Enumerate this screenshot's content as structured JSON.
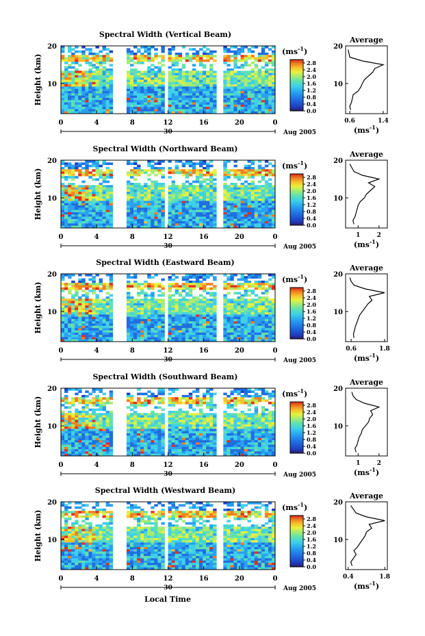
{
  "figure": {
    "xlabel": "Local Time",
    "date_label": "Aug 2005",
    "day_label": "30",
    "unit_label": "(ms",
    "unit_sup": "-1",
    "unit_close": ")",
    "average_title": "Average",
    "height_label": "Height (km)",
    "colormap": [
      "#2b1b6b",
      "#1f3fbf",
      "#1f6fe0",
      "#2aa0f0",
      "#3fd0e8",
      "#60e0b0",
      "#a8ec70",
      "#e8f040",
      "#f8c030",
      "#f08020",
      "#e03020",
      "#c01818"
    ],
    "nodata_color": "#ffffff"
  },
  "chart_data": [
    {
      "type": "heatmap",
      "title": "Spectral Width (Vertical Beam)",
      "ylabel": "Height (km)",
      "xlabel": "",
      "x_ticks": [
        "0",
        "4",
        "8",
        "12",
        "16",
        "20",
        "0"
      ],
      "xlim": [
        0,
        24
      ],
      "y_ticks": [
        "10",
        "20"
      ],
      "ylim": [
        2,
        20
      ],
      "colorbar": {
        "ticks": [
          "0.0",
          "0.4",
          "0.8",
          "1.2",
          "1.6",
          "2.0",
          "2.4",
          "2.8"
        ],
        "range": [
          0,
          3.0
        ]
      },
      "data_gaps_hours": [
        [
          5.8,
          7.4
        ],
        [
          11.6,
          12.0
        ],
        [
          17.6,
          18.2
        ]
      ],
      "average_profile": {
        "title": "Average",
        "xlabel": "(ms-1)",
        "x_ticks": [
          "0.6",
          "1.4"
        ],
        "xlim": [
          0.5,
          1.5
        ],
        "y_ticks": [
          "10",
          "20"
        ],
        "ylim": [
          2,
          20
        ],
        "height": [
          3,
          4,
          5,
          6,
          7,
          8,
          9,
          10,
          11,
          12,
          13,
          14,
          15,
          16,
          17,
          18,
          19
        ],
        "width": [
          0.62,
          0.6,
          0.64,
          0.66,
          0.68,
          0.8,
          0.86,
          0.9,
          0.95,
          1.05,
          1.15,
          1.2,
          1.4,
          0.9,
          0.6,
          0.58,
          0.56
        ]
      }
    },
    {
      "type": "heatmap",
      "title": "Spectral Width (Northward Beam)",
      "ylabel": "Height (km)",
      "xlabel": "",
      "x_ticks": [
        "0",
        "4",
        "8",
        "12",
        "16",
        "20",
        "0"
      ],
      "xlim": [
        0,
        24
      ],
      "y_ticks": [
        "10",
        "20"
      ],
      "ylim": [
        2,
        20
      ],
      "colorbar": {
        "ticks": [
          "0.0",
          "0.4",
          "0.8",
          "1.2",
          "1.6",
          "2.0",
          "2.4",
          "2.8"
        ],
        "range": [
          0,
          3.0
        ]
      },
      "data_gaps_hours": [
        [
          5.8,
          7.4
        ],
        [
          11.6,
          12.0
        ],
        [
          17.6,
          18.2
        ]
      ],
      "average_profile": {
        "title": "Average",
        "xlabel": "(ms-1)",
        "x_ticks": [
          "1",
          "2"
        ],
        "xlim": [
          0.4,
          2.4
        ],
        "y_ticks": [
          "10",
          "20"
        ],
        "ylim": [
          2,
          20
        ],
        "height": [
          3,
          4,
          5,
          6,
          7,
          8,
          9,
          10,
          11,
          12,
          13,
          14,
          15,
          16,
          17,
          18,
          19
        ],
        "width": [
          0.8,
          0.75,
          0.85,
          0.9,
          0.95,
          1.0,
          1.1,
          1.3,
          1.4,
          1.6,
          1.8,
          1.5,
          2.0,
          1.2,
          0.8,
          0.7,
          0.6
        ]
      }
    },
    {
      "type": "heatmap",
      "title": "Spectral Width (Eastward Beam)",
      "ylabel": "Height (km)",
      "xlabel": "",
      "x_ticks": [
        "0",
        "4",
        "8",
        "12",
        "16",
        "20",
        "0"
      ],
      "xlim": [
        0,
        24
      ],
      "y_ticks": [
        "10",
        "20"
      ],
      "ylim": [
        2,
        20
      ],
      "colorbar": {
        "ticks": [
          "0.0",
          "0.4",
          "0.8",
          "1.2",
          "1.6",
          "2.0",
          "2.4",
          "2.8"
        ],
        "range": [
          0,
          3.0
        ]
      },
      "data_gaps_hours": [
        [
          5.8,
          7.4
        ],
        [
          11.6,
          12.0
        ],
        [
          17.6,
          18.2
        ]
      ],
      "average_profile": {
        "title": "Average",
        "xlabel": "(ms-1)",
        "x_ticks": [
          "0.6",
          "1.8"
        ],
        "xlim": [
          0.4,
          1.9
        ],
        "y_ticks": [
          "10",
          "20"
        ],
        "ylim": [
          2,
          20
        ],
        "height": [
          3,
          4,
          5,
          6,
          7,
          8,
          9,
          10,
          11,
          12,
          13,
          14,
          15,
          16,
          17,
          18,
          19
        ],
        "width": [
          0.7,
          0.68,
          0.72,
          0.75,
          0.8,
          0.85,
          0.9,
          1.0,
          1.1,
          1.2,
          1.35,
          1.25,
          1.8,
          1.1,
          0.7,
          0.6,
          0.55
        ]
      }
    },
    {
      "type": "heatmap",
      "title": "Spectral Width (Southward Beam)",
      "ylabel": "Height (km)",
      "xlabel": "",
      "x_ticks": [
        "0",
        "4",
        "8",
        "12",
        "16",
        "20",
        "0"
      ],
      "xlim": [
        0,
        24
      ],
      "y_ticks": [
        "10",
        "20"
      ],
      "ylim": [
        2,
        20
      ],
      "colorbar": {
        "ticks": [
          "0.0",
          "0.4",
          "0.8",
          "1.2",
          "1.6",
          "2.0",
          "2.4",
          "2.8"
        ],
        "range": [
          0,
          3.0
        ]
      },
      "data_gaps_hours": [
        [
          5.8,
          7.4
        ],
        [
          11.6,
          12.0
        ],
        [
          17.6,
          18.2
        ]
      ],
      "average_profile": {
        "title": "Average",
        "xlabel": "(ms-1)",
        "x_ticks": [
          "1",
          "2"
        ],
        "xlim": [
          0.4,
          2.4
        ],
        "y_ticks": [
          "10",
          "20"
        ],
        "ylim": [
          2,
          20
        ],
        "height": [
          3,
          4,
          5,
          6,
          7,
          8,
          9,
          10,
          11,
          12,
          13,
          14,
          15,
          16,
          17,
          18,
          19
        ],
        "width": [
          0.9,
          0.85,
          0.95,
          1.0,
          1.05,
          1.15,
          1.2,
          1.35,
          1.5,
          1.55,
          1.7,
          1.6,
          2.0,
          1.3,
          0.9,
          0.75,
          0.7
        ]
      }
    },
    {
      "type": "heatmap",
      "title": "Spectral Width (Westward Beam)",
      "ylabel": "Height (km)",
      "xlabel": "Local Time",
      "x_ticks": [
        "0",
        "4",
        "8",
        "12",
        "16",
        "20",
        "0"
      ],
      "xlim": [
        0,
        24
      ],
      "y_ticks": [
        "10",
        "20"
      ],
      "ylim": [
        2,
        20
      ],
      "colorbar": {
        "ticks": [
          "0.0",
          "0.4",
          "0.8",
          "1.2",
          "1.6",
          "2.0",
          "2.4",
          "2.8"
        ],
        "range": [
          0,
          3.0
        ]
      },
      "data_gaps_hours": [
        [
          5.8,
          7.4
        ],
        [
          11.6,
          12.0
        ],
        [
          17.6,
          18.2
        ]
      ],
      "average_profile": {
        "title": "Average",
        "xlabel": "(ms-1)",
        "x_ticks": [
          "0.4",
          "1.8"
        ],
        "xlim": [
          0.3,
          1.9
        ],
        "y_ticks": [
          "10",
          "20"
        ],
        "ylim": [
          2,
          20
        ],
        "height": [
          3,
          4,
          5,
          6,
          7,
          8,
          9,
          10,
          11,
          12,
          13,
          14,
          15,
          16,
          17,
          18,
          19
        ],
        "width": [
          0.55,
          0.5,
          0.6,
          0.7,
          0.62,
          0.75,
          0.85,
          0.95,
          1.05,
          1.1,
          1.3,
          1.2,
          1.8,
          1.1,
          0.7,
          0.6,
          0.5
        ]
      }
    }
  ]
}
